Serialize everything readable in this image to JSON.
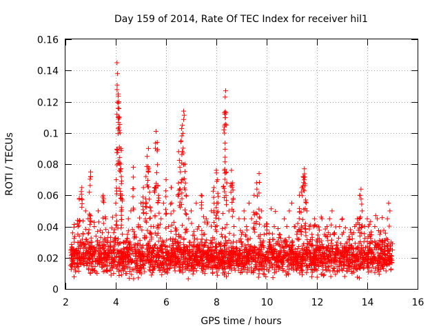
{
  "chart_data": {
    "type": "scatter",
    "title": "Day 159 of 2014, Rate Of TEC Index for receiver hil1",
    "xlabel": "GPS time / hours",
    "ylabel": "ROTI / TECUs",
    "xlim": [
      2,
      16
    ],
    "ylim": [
      0,
      0.16
    ],
    "x_ticks": [
      2,
      4,
      6,
      8,
      10,
      12,
      14,
      16
    ],
    "x_tick_labels": [
      "2",
      "4",
      "6",
      "8",
      "10",
      "12",
      "14",
      "16"
    ],
    "y_ticks": [
      0,
      0.02,
      0.04,
      0.06,
      0.08,
      0.1,
      0.12,
      0.14,
      0.16
    ],
    "y_tick_labels": [
      "0",
      "0.02",
      "0.04",
      "0.06",
      "0.08",
      "0.1",
      "0.12",
      "0.14",
      "0.16"
    ],
    "grid": true,
    "marker": "+",
    "color": "#ff0000",
    "series": [
      {
        "name": "hil1",
        "points": [
          [
            2.2,
            0.015
          ],
          [
            2.25,
            0.022
          ],
          [
            2.3,
            0.018
          ],
          [
            2.35,
            0.03
          ],
          [
            2.4,
            0.012
          ],
          [
            2.45,
            0.025
          ],
          [
            2.5,
            0.04
          ],
          [
            2.55,
            0.058
          ],
          [
            2.6,
            0.02
          ],
          [
            2.65,
            0.065
          ],
          [
            2.7,
            0.035
          ],
          [
            2.75,
            0.028
          ],
          [
            2.8,
            0.05
          ],
          [
            2.85,
            0.015
          ],
          [
            2.9,
            0.045
          ],
          [
            2.95,
            0.062
          ],
          [
            3.0,
            0.075
          ],
          [
            3.05,
            0.03
          ],
          [
            3.1,
            0.022
          ],
          [
            3.15,
            0.04
          ],
          [
            3.2,
            0.018
          ],
          [
            3.3,
            0.05
          ],
          [
            3.4,
            0.033
          ],
          [
            3.5,
            0.06
          ],
          [
            3.55,
            0.025
          ],
          [
            3.6,
            0.045
          ],
          [
            3.7,
            0.02
          ],
          [
            3.8,
            0.03
          ],
          [
            3.9,
            0.015
          ],
          [
            3.95,
            0.038
          ],
          [
            4.0,
            0.055
          ],
          [
            4.02,
            0.07
          ],
          [
            4.05,
            0.145
          ],
          [
            4.07,
            0.138
          ],
          [
            4.1,
            0.125
          ],
          [
            4.12,
            0.12
          ],
          [
            4.15,
            0.11
          ],
          [
            4.17,
            0.1
          ],
          [
            4.2,
            0.09
          ],
          [
            4.22,
            0.072
          ],
          [
            4.25,
            0.06
          ],
          [
            4.3,
            0.03
          ],
          [
            4.4,
            0.02
          ],
          [
            4.5,
            0.045
          ],
          [
            4.6,
            0.05
          ],
          [
            4.7,
            0.078
          ],
          [
            4.75,
            0.035
          ],
          [
            4.8,
            0.025
          ],
          [
            4.9,
            0.04
          ],
          [
            5.0,
            0.055
          ],
          [
            5.1,
            0.065
          ],
          [
            5.2,
            0.072
          ],
          [
            5.25,
            0.085
          ],
          [
            5.3,
            0.09
          ],
          [
            5.35,
            0.062
          ],
          [
            5.4,
            0.05
          ],
          [
            5.5,
            0.04
          ],
          [
            5.55,
            0.065
          ],
          [
            5.6,
            0.101
          ],
          [
            5.65,
            0.094
          ],
          [
            5.7,
            0.06
          ],
          [
            5.8,
            0.045
          ],
          [
            5.9,
            0.055
          ],
          [
            6.0,
            0.07
          ],
          [
            6.1,
            0.04
          ],
          [
            6.2,
            0.065
          ],
          [
            6.3,
            0.05
          ],
          [
            6.4,
            0.035
          ],
          [
            6.5,
            0.088
          ],
          [
            6.55,
            0.078
          ],
          [
            6.6,
            0.095
          ],
          [
            6.65,
            0.105
          ],
          [
            6.7,
            0.114
          ],
          [
            6.75,
            0.08
          ],
          [
            6.8,
            0.06
          ],
          [
            6.9,
            0.045
          ],
          [
            7.0,
            0.05
          ],
          [
            7.1,
            0.03
          ],
          [
            7.2,
            0.055
          ],
          [
            7.3,
            0.04
          ],
          [
            7.4,
            0.06
          ],
          [
            7.5,
            0.035
          ],
          [
            7.6,
            0.045
          ],
          [
            7.7,
            0.025
          ],
          [
            7.8,
            0.05
          ],
          [
            7.9,
            0.065
          ],
          [
            8.0,
            0.076
          ],
          [
            8.05,
            0.07
          ],
          [
            8.1,
            0.045
          ],
          [
            8.2,
            0.035
          ],
          [
            8.3,
            0.102
          ],
          [
            8.32,
            0.113
          ],
          [
            8.35,
            0.123
          ],
          [
            8.37,
            0.127
          ],
          [
            8.4,
            0.075
          ],
          [
            8.5,
            0.05
          ],
          [
            8.6,
            0.076
          ],
          [
            8.65,
            0.068
          ],
          [
            8.7,
            0.04
          ],
          [
            8.8,
            0.03
          ],
          [
            8.9,
            0.045
          ],
          [
            9.0,
            0.035
          ],
          [
            9.1,
            0.05
          ],
          [
            9.2,
            0.04
          ],
          [
            9.3,
            0.055
          ],
          [
            9.4,
            0.045
          ],
          [
            9.5,
            0.06
          ],
          [
            9.6,
            0.068
          ],
          [
            9.7,
            0.074
          ],
          [
            9.8,
            0.05
          ],
          [
            9.9,
            0.035
          ],
          [
            10.0,
            0.04
          ],
          [
            10.1,
            0.03
          ],
          [
            10.2,
            0.025
          ],
          [
            10.3,
            0.04
          ],
          [
            10.4,
            0.02
          ],
          [
            10.5,
            0.035
          ],
          [
            10.6,
            0.03
          ],
          [
            10.7,
            0.045
          ],
          [
            10.8,
            0.04
          ],
          [
            10.9,
            0.05
          ],
          [
            11.0,
            0.055
          ],
          [
            11.1,
            0.04
          ],
          [
            11.2,
            0.035
          ],
          [
            11.3,
            0.06
          ],
          [
            11.4,
            0.065
          ],
          [
            11.45,
            0.072
          ],
          [
            11.5,
            0.077
          ],
          [
            11.55,
            0.057
          ],
          [
            11.6,
            0.05
          ],
          [
            11.7,
            0.04
          ],
          [
            11.8,
            0.035
          ],
          [
            11.9,
            0.045
          ],
          [
            12.0,
            0.04
          ],
          [
            12.1,
            0.03
          ],
          [
            12.2,
            0.045
          ],
          [
            12.3,
            0.035
          ],
          [
            12.4,
            0.04
          ],
          [
            12.5,
            0.045
          ],
          [
            12.6,
            0.05
          ],
          [
            12.7,
            0.035
          ],
          [
            12.8,
            0.03
          ],
          [
            12.9,
            0.04
          ],
          [
            13.0,
            0.035
          ],
          [
            13.1,
            0.025
          ],
          [
            13.2,
            0.03
          ],
          [
            13.3,
            0.022
          ],
          [
            13.4,
            0.035
          ],
          [
            13.5,
            0.04
          ],
          [
            13.6,
            0.045
          ],
          [
            13.7,
            0.06
          ],
          [
            13.75,
            0.064
          ],
          [
            13.8,
            0.05
          ],
          [
            13.9,
            0.04
          ],
          [
            14.0,
            0.045
          ],
          [
            14.1,
            0.035
          ],
          [
            14.2,
            0.03
          ],
          [
            14.3,
            0.04
          ],
          [
            14.4,
            0.045
          ],
          [
            14.5,
            0.035
          ],
          [
            14.6,
            0.03
          ],
          [
            14.7,
            0.025
          ],
          [
            14.8,
            0.045
          ],
          [
            14.85,
            0.055
          ],
          [
            14.9,
            0.05
          ],
          [
            14.95,
            0.03
          ],
          [
            15.0,
            0.025
          ]
        ]
      }
    ],
    "dense_band": {
      "description": "dense cloud of ROTI points between 2.2 and 15.0 hours",
      "x_range": [
        2.2,
        15.0
      ],
      "y_typical_range": [
        0.005,
        0.035
      ],
      "approx_point_count": 2600
    }
  }
}
